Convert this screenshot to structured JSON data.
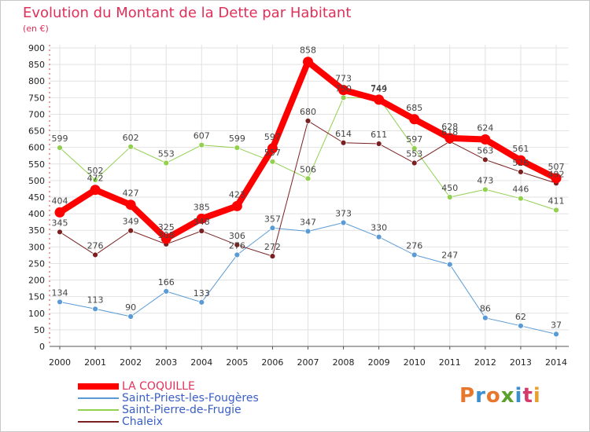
{
  "header": {
    "title": "Evolution du Montant de la Dette par Habitant",
    "unit": "(en €)"
  },
  "logo": {
    "text": "Proxiti",
    "colors": [
      "#e8772e",
      "#3a8fd0",
      "#e8772e",
      "#5aa02c",
      "#3a8fd0",
      "#d63a6a",
      "#e8a030"
    ]
  },
  "chart_data": {
    "type": "line",
    "title": "Evolution du Montant de la Dette par Habitant",
    "ylabel": "(en €)",
    "ylim": [
      0,
      900
    ],
    "yticks": [
      0,
      50,
      100,
      150,
      200,
      250,
      300,
      350,
      400,
      450,
      500,
      550,
      600,
      650,
      700,
      750,
      800,
      850,
      900
    ],
    "categories": [
      "2000",
      "2001",
      "2002",
      "2003",
      "2004",
      "2005",
      "2006",
      "2007",
      "2008",
      "2009",
      "2010",
      "2011",
      "2012",
      "2013",
      "2014"
    ],
    "grid": true,
    "legend_position": "bottom-left",
    "series": [
      {
        "name": "LA COQUILLE",
        "color": "#ff0000",
        "emphasis": true,
        "values": [
          404,
          472,
          427,
          325,
          385,
          423,
          597,
          858,
          773,
          744,
          685,
          628,
          624,
          561,
          507
        ]
      },
      {
        "name": "Saint-Priest-les-Fougères",
        "color": "#5b9bd5",
        "values": [
          134,
          113,
          90,
          166,
          133,
          276,
          357,
          347,
          373,
          330,
          276,
          247,
          86,
          62,
          37
        ]
      },
      {
        "name": "Saint-Pierre-de-Frugie",
        "color": "#92d050",
        "values": [
          599,
          502,
          602,
          553,
          607,
          599,
          557,
          506,
          750,
          749,
          597,
          450,
          473,
          446,
          411
        ]
      },
      {
        "name": "Chaleix",
        "color": "#7b2020",
        "values": [
          345,
          276,
          349,
          308,
          348,
          306,
          272,
          680,
          614,
          611,
          553,
          618,
          563,
          526,
          492
        ]
      }
    ]
  }
}
